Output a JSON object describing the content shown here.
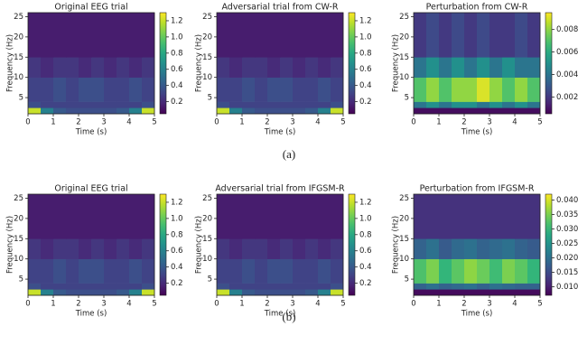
{
  "chart_data": [
    {
      "type": "heatmap",
      "title": "Original EEG trial",
      "x_label": "Time (s)",
      "y_label": "Frequency (Hz)",
      "colormap": "viridis",
      "xbins": [
        0,
        0.5,
        1,
        1.5,
        2,
        2.5,
        3,
        3.5,
        4,
        4.5,
        5
      ],
      "ybins": [
        1,
        2.5,
        4,
        10,
        15,
        26
      ],
      "values": [
        [
          1.2,
          0.6,
          0.4,
          0.35,
          0.35,
          0.35,
          0.35,
          0.4,
          0.6,
          1.2
        ],
        [
          0.35,
          0.3,
          0.3,
          0.3,
          0.3,
          0.3,
          0.3,
          0.3,
          0.3,
          0.35
        ],
        [
          0.3,
          0.3,
          0.35,
          0.3,
          0.35,
          0.35,
          0.3,
          0.3,
          0.35,
          0.3
        ],
        [
          0.25,
          0.2,
          0.25,
          0.25,
          0.2,
          0.25,
          0.2,
          0.25,
          0.2,
          0.25
        ],
        [
          0.15,
          0.15,
          0.15,
          0.15,
          0.15,
          0.15,
          0.15,
          0.15,
          0.15,
          0.15
        ]
      ],
      "xlim": [
        0,
        5
      ],
      "ylim": [
        1,
        26
      ],
      "xticks": [
        0,
        1,
        2,
        3,
        4,
        5
      ],
      "yticks": [
        5,
        10,
        15,
        20,
        25
      ],
      "clim": [
        0.05,
        1.3
      ],
      "cticks": [
        0.2,
        0.4,
        0.6,
        0.8,
        {
          "value": 1,
          "label": "1.0"
        },
        1.2
      ]
    },
    {
      "type": "heatmap",
      "title": "Adversarial trial from CW-R",
      "x_label": "Time (s)",
      "y_label": "Frequency (Hz)",
      "colormap": "viridis",
      "xbins": [
        0,
        0.5,
        1,
        1.5,
        2,
        2.5,
        3,
        3.5,
        4,
        4.5,
        5
      ],
      "ybins": [
        1,
        2.5,
        4,
        10,
        15,
        26
      ],
      "values": [
        [
          1.2,
          0.6,
          0.4,
          0.35,
          0.35,
          0.35,
          0.35,
          0.4,
          0.6,
          1.2
        ],
        [
          0.35,
          0.3,
          0.3,
          0.3,
          0.3,
          0.3,
          0.3,
          0.3,
          0.3,
          0.35
        ],
        [
          0.3,
          0.3,
          0.35,
          0.3,
          0.35,
          0.35,
          0.3,
          0.3,
          0.35,
          0.3
        ],
        [
          0.25,
          0.2,
          0.25,
          0.25,
          0.2,
          0.25,
          0.2,
          0.25,
          0.2,
          0.25
        ],
        [
          0.15,
          0.15,
          0.15,
          0.15,
          0.15,
          0.15,
          0.15,
          0.15,
          0.15,
          0.15
        ]
      ],
      "xlim": [
        0,
        5
      ],
      "ylim": [
        1,
        26
      ],
      "xticks": [
        0,
        1,
        2,
        3,
        4,
        5
      ],
      "yticks": [
        5,
        10,
        15,
        20,
        25
      ],
      "clim": [
        0.05,
        1.3
      ],
      "cticks": [
        0.2,
        0.4,
        0.6,
        0.8,
        {
          "value": 1,
          "label": "1.0"
        },
        1.2
      ]
    },
    {
      "type": "heatmap",
      "title": "Perturbation from CW-R",
      "x_label": "Time (s)",
      "y_label": "Frequency (Hz)",
      "colormap": "viridis",
      "xbins": [
        0,
        0.5,
        1,
        1.5,
        2,
        2.5,
        3,
        3.5,
        4,
        4.5,
        5
      ],
      "ybins": [
        1,
        2.5,
        4,
        10,
        15,
        26
      ],
      "values": [
        [
          0.0008,
          0.0008,
          0.0008,
          0.0008,
          0.0008,
          0.0008,
          0.0008,
          0.0008,
          0.0008,
          0.0008
        ],
        [
          0.004,
          0.005,
          0.004,
          0.005,
          0.005,
          0.004,
          0.005,
          0.004,
          0.005,
          0.004
        ],
        [
          0.007,
          0.008,
          0.007,
          0.008,
          0.008,
          0.009,
          0.008,
          0.007,
          0.008,
          0.007
        ],
        [
          0.004,
          0.005,
          0.004,
          0.005,
          0.004,
          0.005,
          0.004,
          0.005,
          0.004,
          0.004
        ],
        [
          0.002,
          0.0025,
          0.002,
          0.0025,
          0.002,
          0.0025,
          0.002,
          0.002,
          0.0025,
          0.002
        ]
      ],
      "xlim": [
        0,
        5
      ],
      "ylim": [
        1,
        26
      ],
      "xticks": [
        0,
        1,
        2,
        3,
        4,
        5
      ],
      "yticks": [
        5,
        10,
        15,
        20,
        25
      ],
      "clim": [
        0.0005,
        0.0095
      ],
      "cticks": [
        0.002,
        0.004,
        0.006,
        0.008
      ]
    },
    {
      "type": "heatmap",
      "title": "Original EEG trial",
      "x_label": "Time (s)",
      "y_label": "Frequency (Hz)",
      "colormap": "viridis",
      "xbins": [
        0,
        0.5,
        1,
        1.5,
        2,
        2.5,
        3,
        3.5,
        4,
        4.5,
        5
      ],
      "ybins": [
        1,
        2.5,
        4,
        10,
        15,
        26
      ],
      "values": [
        [
          1.2,
          0.6,
          0.4,
          0.35,
          0.35,
          0.35,
          0.35,
          0.4,
          0.6,
          1.2
        ],
        [
          0.35,
          0.3,
          0.3,
          0.3,
          0.3,
          0.3,
          0.3,
          0.3,
          0.3,
          0.35
        ],
        [
          0.3,
          0.3,
          0.35,
          0.3,
          0.35,
          0.35,
          0.3,
          0.3,
          0.35,
          0.3
        ],
        [
          0.25,
          0.2,
          0.25,
          0.25,
          0.2,
          0.25,
          0.2,
          0.25,
          0.2,
          0.25
        ],
        [
          0.15,
          0.15,
          0.15,
          0.15,
          0.15,
          0.15,
          0.15,
          0.15,
          0.15,
          0.15
        ]
      ],
      "xlim": [
        0,
        5
      ],
      "ylim": [
        1,
        26
      ],
      "xticks": [
        0,
        1,
        2,
        3,
        4,
        5
      ],
      "yticks": [
        5,
        10,
        15,
        20,
        25
      ],
      "clim": [
        0.05,
        1.3
      ],
      "cticks": [
        0.2,
        0.4,
        0.6,
        0.8,
        {
          "value": 1,
          "label": "1.0"
        },
        1.2
      ]
    },
    {
      "type": "heatmap",
      "title": "Adversarial trial from IFGSM-R",
      "x_label": "Time (s)",
      "y_label": "Frequency (Hz)",
      "colormap": "viridis",
      "xbins": [
        0,
        0.5,
        1,
        1.5,
        2,
        2.5,
        3,
        3.5,
        4,
        4.5,
        5
      ],
      "ybins": [
        1,
        2.5,
        4,
        10,
        15,
        26
      ],
      "values": [
        [
          1.2,
          0.6,
          0.4,
          0.35,
          0.35,
          0.35,
          0.35,
          0.4,
          0.6,
          1.2
        ],
        [
          0.35,
          0.3,
          0.3,
          0.3,
          0.3,
          0.3,
          0.3,
          0.3,
          0.3,
          0.35
        ],
        [
          0.3,
          0.3,
          0.35,
          0.3,
          0.35,
          0.35,
          0.3,
          0.3,
          0.35,
          0.3
        ],
        [
          0.25,
          0.2,
          0.25,
          0.25,
          0.2,
          0.25,
          0.2,
          0.25,
          0.2,
          0.25
        ],
        [
          0.15,
          0.15,
          0.15,
          0.15,
          0.15,
          0.15,
          0.15,
          0.15,
          0.15,
          0.15
        ]
      ],
      "xlim": [
        0,
        5
      ],
      "ylim": [
        1,
        26
      ],
      "xticks": [
        0,
        1,
        2,
        3,
        4,
        5
      ],
      "yticks": [
        5,
        10,
        15,
        20,
        25
      ],
      "clim": [
        0.05,
        1.3
      ],
      "cticks": [
        0.2,
        0.4,
        0.6,
        0.8,
        {
          "value": 1,
          "label": "1.0"
        },
        1.2
      ]
    },
    {
      "type": "heatmap",
      "title": "Perturbation from IFGSM-R",
      "x_label": "Time (s)",
      "y_label": "Frequency (Hz)",
      "colormap": "viridis",
      "xbins": [
        0,
        0.5,
        1,
        1.5,
        2,
        2.5,
        3,
        3.5,
        4,
        4.5,
        5
      ],
      "ybins": [
        1,
        2.5,
        4,
        10,
        15,
        26
      ],
      "values": [
        [
          0.008,
          0.008,
          0.008,
          0.008,
          0.008,
          0.008,
          0.008,
          0.008,
          0.008,
          0.008
        ],
        [
          0.018,
          0.02,
          0.018,
          0.019,
          0.02,
          0.018,
          0.02,
          0.019,
          0.018,
          0.018
        ],
        [
          0.032,
          0.035,
          0.03,
          0.033,
          0.036,
          0.034,
          0.031,
          0.035,
          0.033,
          0.03
        ],
        [
          0.018,
          0.02,
          0.017,
          0.019,
          0.02,
          0.018,
          0.019,
          0.02,
          0.018,
          0.017
        ],
        [
          0.012,
          0.012,
          0.012,
          0.012,
          0.012,
          0.012,
          0.012,
          0.012,
          0.012,
          0.012
        ]
      ],
      "xlim": [
        0,
        5
      ],
      "ylim": [
        1,
        26
      ],
      "xticks": [
        0,
        1,
        2,
        3,
        4,
        5
      ],
      "yticks": [
        5,
        10,
        15,
        20,
        25
      ],
      "clim": [
        0.007,
        0.042
      ],
      "cticks": [
        {
          "value": 0.01,
          "label": "0.010"
        },
        0.015,
        {
          "value": 0.02,
          "label": "0.020"
        },
        0.025,
        {
          "value": 0.03,
          "label": "0.030"
        },
        0.035,
        {
          "value": 0.04,
          "label": "0.040"
        }
      ]
    }
  ],
  "captions": [
    "(a)",
    "(b)"
  ]
}
